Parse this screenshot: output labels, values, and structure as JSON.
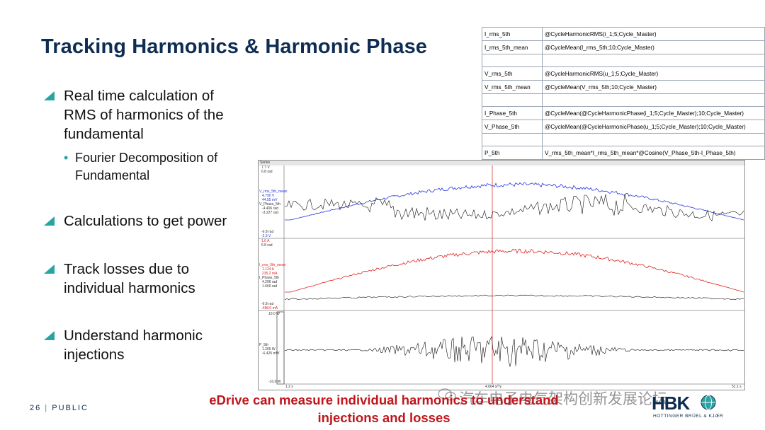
{
  "slide": {
    "title": "Tracking Harmonics & Harmonic Phase",
    "bullets": [
      {
        "text": "Real time calculation of\nRMS of harmonics of the\nfundamental"
      },
      {
        "text": "Calculations to get power"
      },
      {
        "text": "Track losses due to\nindividual harmonics"
      },
      {
        "text": "Understand harmonic\ninjections"
      }
    ],
    "sub_bullet": "Fourier Decomposition of\nFundamental",
    "caption": "eDrive can measure individual harmonics to understand\ninjections and losses",
    "page_number": "26",
    "classification": "PUBLIC",
    "watermark": "汽车电子电气架构创新发展论坛",
    "logo_mark": "HBK",
    "logo_subtext": "HOTTINGER BRÜEL & KJÆR"
  },
  "formula_table": {
    "rows": [
      {
        "name": "I_rms_5th",
        "formula": "@CycleHarmonicRMS(i_1;5;Cycle_Master)"
      },
      {
        "name": "I_rms_5th_mean",
        "formula": "@CycleMean(I_rms_5th;10;Cycle_Master)"
      },
      {
        "name": "",
        "formula": ""
      },
      {
        "name": "V_rms_5th",
        "formula": "@CycleHarmonicRMS(u_1;5;Cycle_Master)"
      },
      {
        "name": "V_rms_5th_mean",
        "formula": "@CycleMean(V_rms_5th;10;Cycle_Master)"
      },
      {
        "name": "",
        "formula": ""
      },
      {
        "name": "I_Phase_5th",
        "formula": "@CycleMean(@CycleHarmonicPhase(i_1;5;Cycle_Master);10;Cycle_Master)"
      },
      {
        "name": "V_Phase_5th",
        "formula": "@CycleMean(@CycleHarmonicPhase(u_1;5;Cycle_Master);10;Cycle_Master)"
      },
      {
        "name": "",
        "formula": ""
      },
      {
        "name": "P_5th",
        "formula": "V_rms_5th_mean*I_rms_5th_mean*@Cosine(V_Phase_5th-I_Phase_5th)"
      }
    ]
  },
  "plot": {
    "header": "Series",
    "panel1": {
      "top_v": "7.7 V",
      "top_rad": "6.8 rad",
      "legend": [
        "V_rms_5th_mean",
        "4.790 V",
        "44.55 mV",
        "V_Phase_5th",
        "-4.406 rad",
        "-3.227 rad"
      ],
      "bottom_rad": "-6.8 rad",
      "bottom_v": "-2.3 V"
    },
    "panel2": {
      "top_a": "1.6 A",
      "top_rad": "6.8 rad",
      "legend": [
        "I_rms_5th_mean",
        "1.124 A",
        "235.2 mA",
        "I_Phase_5th",
        "4.206 rad",
        "1.660 rad"
      ],
      "bottom_rad": "-6.8 rad",
      "bottom_a": "-488.0 mA"
    },
    "panel3": {
      "top": "10.0 W",
      "legend": [
        "P_5th",
        "1.265 W",
        "-6.425 mW"
      ],
      "bottom": "-10.0 W"
    },
    "x_start": "1.2 s",
    "x_mid": "4.664 s/Ty",
    "x_end": "51.1 s"
  },
  "colors": {
    "title": "#0e2d52",
    "accent": "#2aa3a3",
    "caption": "#c0161c",
    "cursor": "#e05050"
  }
}
